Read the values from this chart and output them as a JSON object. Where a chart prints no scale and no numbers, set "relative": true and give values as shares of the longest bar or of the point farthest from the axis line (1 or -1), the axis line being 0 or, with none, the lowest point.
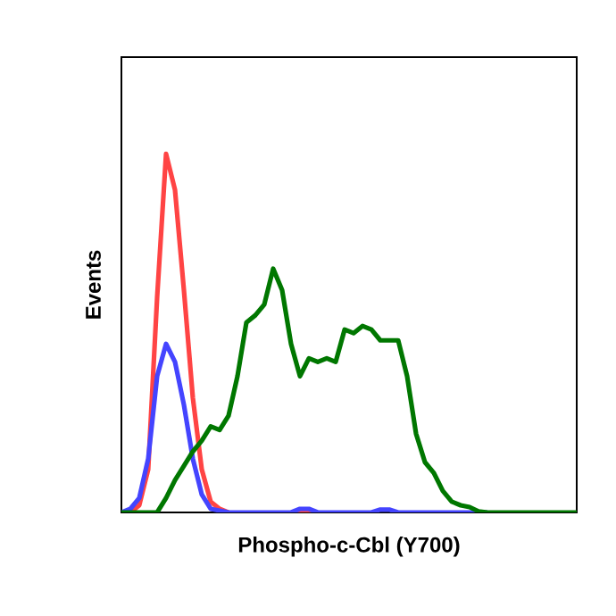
{
  "chart_data": {
    "type": "line",
    "relative": true,
    "xlabel": "Phospho-c-Cbl (Y700)",
    "ylabel": "Events",
    "tick_labels": false,
    "marker": "none",
    "line_style": "solid",
    "categories": [
      null,
      null,
      null,
      null,
      null,
      null,
      null,
      null,
      null,
      null,
      null,
      null,
      null,
      null,
      null,
      null,
      null,
      null,
      null,
      null,
      null,
      null,
      null,
      null,
      null,
      null,
      null,
      null,
      null,
      null,
      null,
      null,
      null,
      null,
      null,
      null,
      null,
      null,
      null,
      null,
      null,
      null,
      null,
      null,
      null,
      null,
      null,
      null,
      null,
      null,
      null,
      null
    ],
    "series": [
      {
        "color": "#ff4444",
        "values": [
          null,
          0,
          0.02,
          0.12,
          0.6,
          1.0,
          0.9,
          0.62,
          0.32,
          0.12,
          0.03,
          0.01,
          0,
          null,
          null,
          null,
          null,
          null,
          null,
          0,
          0,
          0,
          0,
          null,
          null,
          null,
          null,
          null,
          null,
          null,
          null,
          null,
          null,
          null,
          null,
          null,
          null,
          null,
          null,
          null,
          null,
          null,
          null,
          null,
          null,
          null,
          null,
          null,
          null,
          null,
          null,
          null
        ]
      },
      {
        "color": "#4444ff",
        "values": [
          0,
          0.01,
          0.04,
          0.15,
          0.38,
          0.47,
          0.42,
          0.3,
          0.15,
          0.05,
          0.01,
          0.005,
          0,
          0,
          0,
          0,
          0,
          0,
          0,
          0,
          0.01,
          0.01,
          0,
          0,
          0,
          0,
          0,
          0,
          0,
          0.008,
          0.008,
          0,
          0,
          0,
          0,
          0,
          0,
          0,
          0,
          0,
          0,
          0,
          null,
          null,
          null,
          null,
          null,
          null,
          null,
          null,
          null,
          null
        ]
      },
      {
        "color": "#007700",
        "values": [
          0,
          0,
          0,
          0,
          0,
          0.04,
          0.09,
          0.13,
          0.17,
          0.2,
          0.24,
          0.23,
          0.27,
          0.38,
          0.53,
          0.55,
          0.58,
          0.68,
          0.62,
          0.47,
          0.38,
          0.43,
          0.42,
          0.43,
          0.42,
          0.51,
          0.5,
          0.52,
          0.51,
          0.48,
          0.48,
          0.48,
          0.38,
          0.22,
          0.14,
          0.11,
          0.06,
          0.03,
          0.02,
          0.015,
          0.003,
          0,
          0,
          0,
          0,
          0,
          0,
          0,
          0,
          0,
          0,
          0
        ]
      }
    ]
  }
}
